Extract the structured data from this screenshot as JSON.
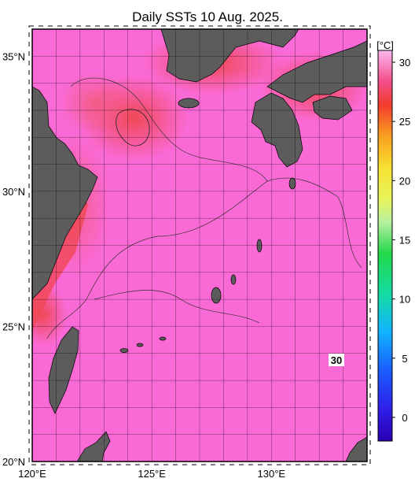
{
  "title": "Daily SSTs 10 Aug. 2025.",
  "map": {
    "lon_range": [
      120,
      134
    ],
    "lat_range": [
      20,
      36
    ],
    "lon_ticks": [
      "120°E",
      "125°E",
      "130°E"
    ],
    "lat_ticks": [
      "20°N",
      "25°N",
      "30°N",
      "35°N"
    ],
    "inline_contour_label": "30",
    "colors": {
      "sea_base": "#fa6ad6",
      "sea_warm": "#f0464f",
      "land": "#5c5c5c",
      "grid": "#000000"
    }
  },
  "colorbar": {
    "unit": "[°C]",
    "tick_labels": [
      "30",
      "25",
      "20",
      "15",
      "10",
      "5",
      "0"
    ],
    "range": [
      -2,
      31
    ]
  }
}
